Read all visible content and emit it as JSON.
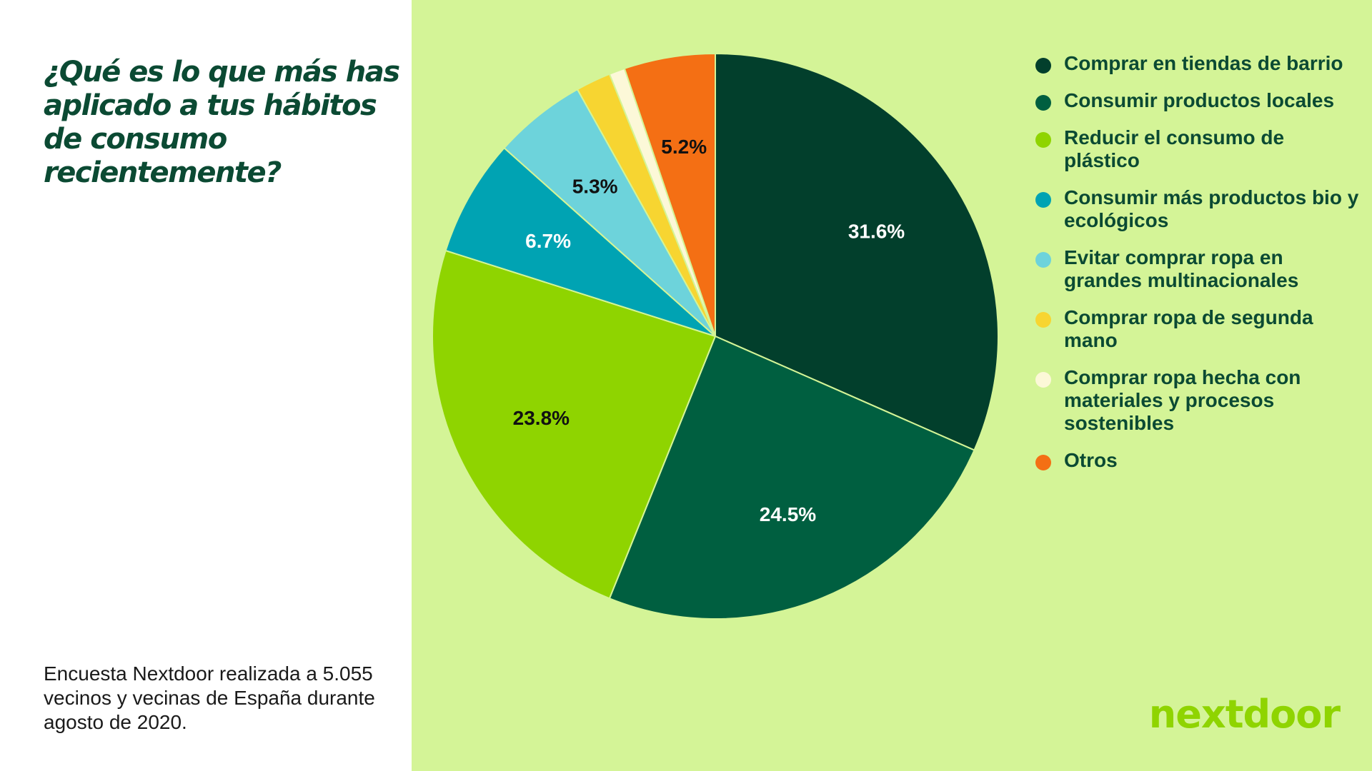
{
  "title": "¿Qué es lo que más has aplicado a tus hábitos de consumo recientemente?",
  "note": "Encuesta Nextdoor realizada a 5.055 vecinos y vecinas de España durante agosto de 2020.",
  "brand": "nextdoor",
  "colors": {
    "left_background": "#ffffff",
    "right_background": "#d4f497",
    "title": "#0b4a33",
    "legend_text": "#0b4a33",
    "brand": "#8fd400"
  },
  "chart_data": {
    "type": "pie",
    "title": "",
    "legend_position": "right",
    "start_angle_deg": 0,
    "direction": "clockwise",
    "slices": [
      {
        "label": "Comprar en tiendas de barrio",
        "value": 31.6,
        "display": "31.6%",
        "color": "#023f2c",
        "label_color": "#ffffff"
      },
      {
        "label": "Consumir productos locales",
        "value": 24.5,
        "display": "24.5%",
        "color": "#005f40",
        "label_color": "#ffffff"
      },
      {
        "label": "Reducir el consumo de plástico",
        "value": 23.8,
        "display": "23.8%",
        "color": "#8fd400",
        "label_color": "#111111"
      },
      {
        "label": "Consumir más productos bio y ecológicos",
        "value": 6.7,
        "display": "6.7%",
        "color": "#00a3b3",
        "label_color": "#ffffff"
      },
      {
        "label": "Evitar comprar ropa en grandes multinacionales",
        "value": 5.3,
        "display": "5.3%",
        "color": "#6dd3db",
        "label_color": "#111111"
      },
      {
        "label": "Comprar ropa de segunda mano",
        "value": 2.0,
        "display": "",
        "color": "#f7d531",
        "label_color": "#111111"
      },
      {
        "label": "Comprar ropa hecha con materiales y procesos sostenibles",
        "value": 0.9,
        "display": "",
        "color": "#fcf8d8",
        "label_color": "#111111"
      },
      {
        "label": "Otros",
        "value": 5.2,
        "display": "5.2%",
        "color": "#f46f14",
        "label_color": "#111111"
      }
    ]
  }
}
